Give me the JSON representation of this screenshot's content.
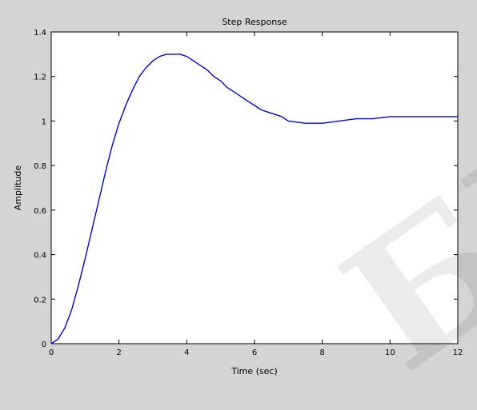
{
  "chart_data": {
    "type": "line",
    "title": "Step Response",
    "xlabel": "Time (sec)",
    "ylabel": "Amplitude",
    "xlim": [
      0,
      12
    ],
    "ylim": [
      0,
      1.4
    ],
    "grid": false,
    "xticks": [
      0,
      2,
      4,
      6,
      8,
      10,
      12
    ],
    "yticks": [
      0,
      0.2,
      0.4,
      0.6,
      0.8,
      1,
      1.2,
      1.4
    ],
    "xtick_labels": [
      "0",
      "2",
      "4",
      "6",
      "8",
      "10",
      "12"
    ],
    "ytick_labels": [
      "0",
      "0.2",
      "0.4",
      "0.6",
      "0.8",
      "1",
      "1.2",
      "1.4"
    ],
    "series": [
      {
        "color": "#0000ff",
        "x": [
          0,
          0.2,
          0.4,
          0.6,
          0.8,
          1.0,
          1.2,
          1.4,
          1.6,
          1.8,
          2.0,
          2.2,
          2.4,
          2.6,
          2.8,
          3.0,
          3.2,
          3.4,
          3.6,
          3.8,
          4.0,
          4.2,
          4.4,
          4.6,
          4.8,
          5.0,
          5.2,
          5.4,
          5.6,
          5.8,
          6.0,
          6.2,
          6.4,
          6.6,
          6.8,
          7.0,
          7.5,
          8.0,
          8.5,
          9.0,
          9.5,
          10.0,
          10.5,
          11.0,
          11.5,
          12.0
        ],
        "y": [
          0,
          0.02,
          0.07,
          0.15,
          0.26,
          0.38,
          0.51,
          0.64,
          0.77,
          0.89,
          0.99,
          1.07,
          1.14,
          1.2,
          1.24,
          1.27,
          1.29,
          1.3,
          1.3,
          1.3,
          1.29,
          1.27,
          1.25,
          1.23,
          1.2,
          1.18,
          1.15,
          1.13,
          1.11,
          1.09,
          1.07,
          1.05,
          1.04,
          1.03,
          1.02,
          1.0,
          0.99,
          0.99,
          1.0,
          1.01,
          1.01,
          1.02,
          1.02,
          1.02,
          1.02,
          1.02
        ]
      }
    ]
  },
  "watermark": "БГ"
}
